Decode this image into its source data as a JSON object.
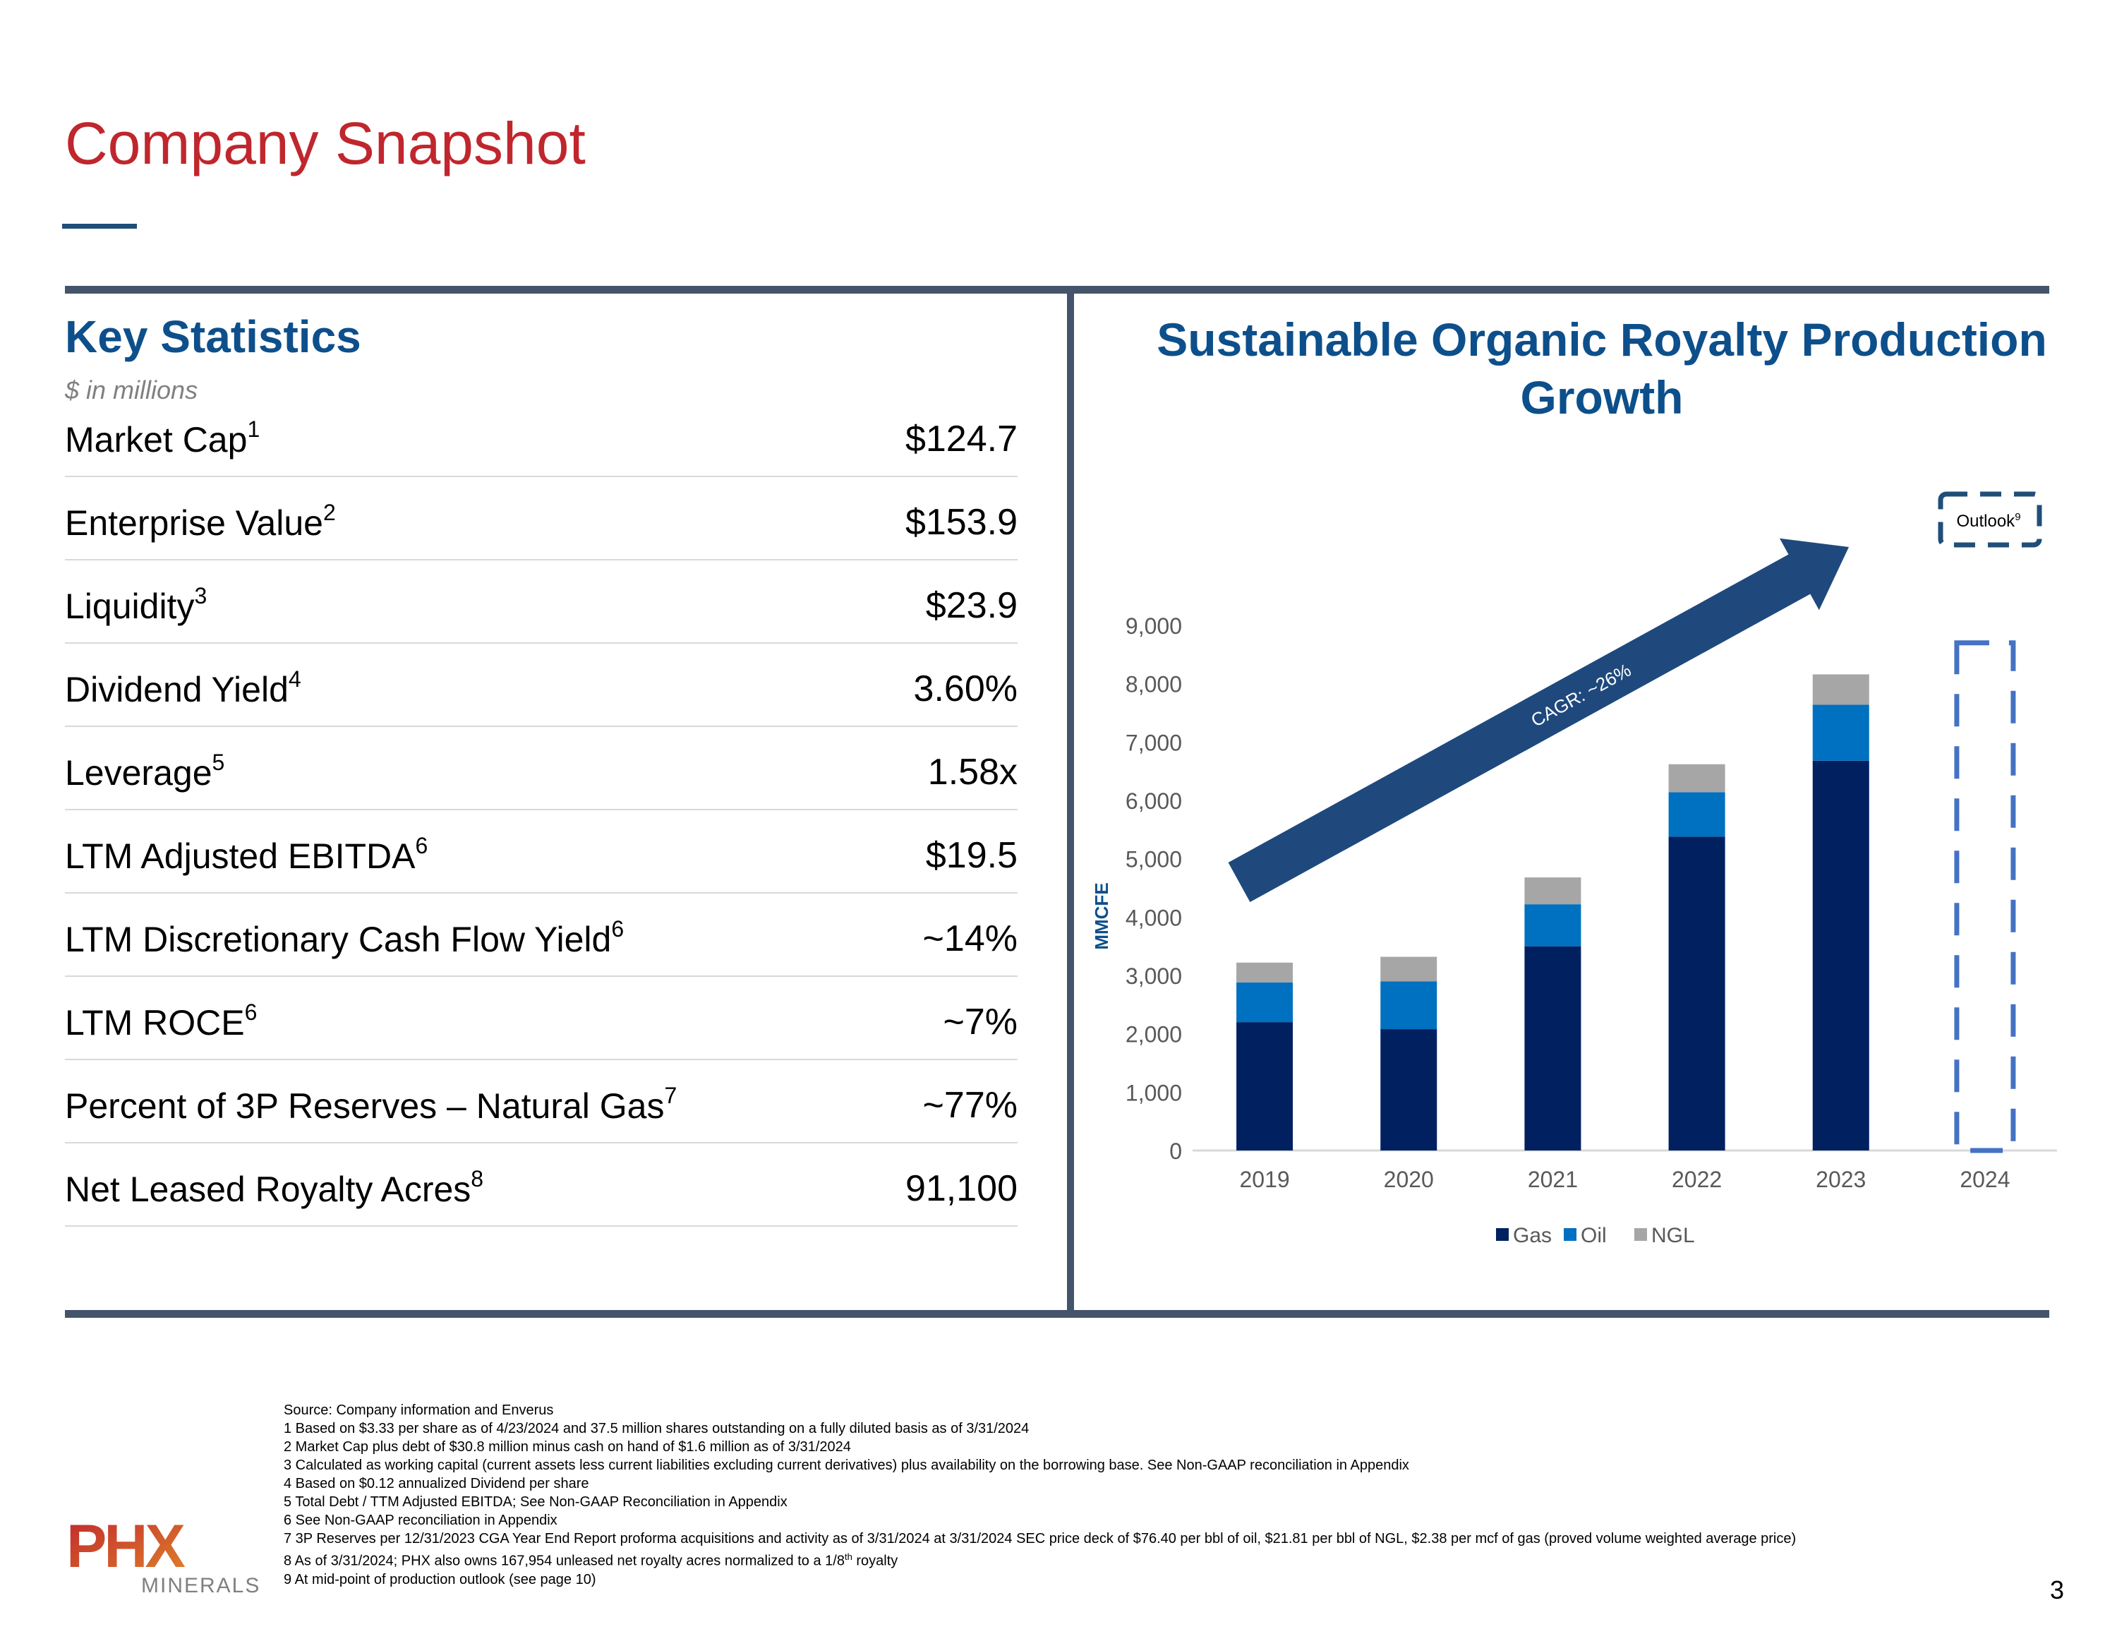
{
  "title": "Company Snapshot",
  "key_statistics": {
    "heading": "Key Statistics",
    "subtitle": "$ in millions",
    "rows": [
      {
        "label": "Market Cap",
        "note": "1",
        "value": "$124.7"
      },
      {
        "label": "Enterprise Value",
        "note": "2",
        "value": "$153.9"
      },
      {
        "label": "Liquidity",
        "note": "3",
        "value": "$23.9"
      },
      {
        "label": "Dividend Yield",
        "note": "4",
        "value": "3.60%"
      },
      {
        "label": "Leverage",
        "note": "5",
        "value": "1.58x"
      },
      {
        "label": "LTM Adjusted EBITDA",
        "note": "6",
        "value": "$19.5"
      },
      {
        "label": "LTM Discretionary Cash Flow Yield",
        "note": "6",
        "value": "~14%"
      },
      {
        "label": "LTM ROCE",
        "note": "6",
        "value": "~7%"
      },
      {
        "label": "Percent of 3P Reserves – Natural Gas",
        "note": "7",
        "value": "~77%"
      },
      {
        "label": "Net Leased Royalty Acres",
        "note": "8",
        "value": "91,100"
      }
    ]
  },
  "chart_data": {
    "type": "bar",
    "stacked": true,
    "title": "Sustainable Organic Royalty Production Growth",
    "ylabel": "MMCFE",
    "xlabel": "",
    "categories": [
      "2019",
      "2020",
      "2021",
      "2022",
      "2023",
      "2024"
    ],
    "yticks": [
      "0",
      "1,000",
      "2,000",
      "3,000",
      "4,000",
      "5,000",
      "6,000",
      "7,000",
      "8,000",
      "9,000"
    ],
    "ylim": [
      0,
      9000
    ],
    "series": [
      {
        "name": "Gas",
        "color": "#002060",
        "values": [
          2200,
          2080,
          3500,
          5380,
          6680,
          null
        ]
      },
      {
        "name": "Oil",
        "color": "#0070c0",
        "values": [
          680,
          820,
          720,
          760,
          960,
          null
        ]
      },
      {
        "name": "NGL",
        "color": "#a6a6a6",
        "values": [
          340,
          420,
          460,
          480,
          520,
          null
        ]
      }
    ],
    "annotation": "CAGR: ~26%",
    "outlook_label": "Outlook",
    "outlook_note": "9",
    "outlook_value": 8700,
    "legend": [
      "Gas",
      "Oil",
      "NGL"
    ],
    "legend_position": "bottom"
  },
  "footnotes": [
    "Source: Company information and Enverus",
    "1 Based on $3.33 per share as of 4/23/2024 and 37.5 million shares outstanding on a fully diluted basis  as of 3/31/2024",
    "2 Market Cap plus debt of $30.8 million minus cash on hand of $1.6 million as of 3/31/2024",
    "3 Calculated as working capital (current assets less current liabilities excluding current derivatives) plus availability on the borrowing base.  See Non-GAAP reconciliation in Appendix",
    "4 Based on $0.12 annualized Dividend per share",
    "5 Total Debt / TTM Adjusted EBITDA; See Non-GAAP Reconciliation in Appendix",
    "6 See Non-GAAP reconciliation in Appendix",
    "7 3P Reserves per 12/31/2023 CGA  Year End Report  proforma acquisitions and activity as of 3/31/2024 at 3/31/2024 SEC price deck of $76.40 per bbl of oil, $21.81 per bbl of NGL, $2.38 per mcf of gas (proved volume weighted average price)"
  ],
  "footnote8": {
    "pre": "8 As of 3/31/2024; PHX also owns 167,954 unleased net royalty acres normalized to a 1/8",
    "sup": "th",
    "post": " royalty"
  },
  "footnote9": "9 At mid-point of production outlook (see page 10)",
  "logo": {
    "text": "PHX",
    "subtext": "MINERALS",
    "color": "#c0262d"
  },
  "page_number": "3"
}
